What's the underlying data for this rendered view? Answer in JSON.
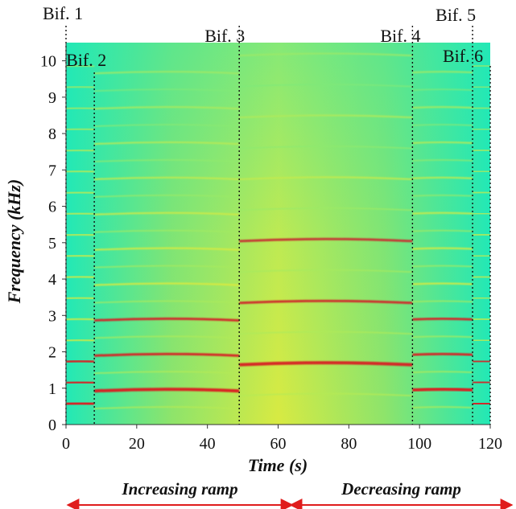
{
  "chart_data": {
    "type": "heatmap",
    "xlabel": "Time (s)",
    "ylabel": "Frequency (kHz)",
    "xlim": [
      0,
      120
    ],
    "ylim": [
      0,
      10.5
    ],
    "xticks": [
      0,
      20,
      40,
      60,
      80,
      100,
      120
    ],
    "yticks": [
      0,
      1,
      2,
      3,
      4,
      5,
      6,
      7,
      8,
      9,
      10
    ],
    "colors": {
      "background": "#22e8b6",
      "low": "#5ce29a",
      "mid": "#b9ea52",
      "high": "#f4ea2e",
      "peak": "#e0141a",
      "arrow": "#e01c1c"
    },
    "bifurcations": [
      {
        "label": "Bif. 1",
        "time": 0
      },
      {
        "label": "Bif. 2",
        "time": 8
      },
      {
        "label": "Bif. 3",
        "time": 49
      },
      {
        "label": "Bif. 4",
        "time": 98
      },
      {
        "label": "Bif. 5",
        "time": 115
      },
      {
        "label": "Bif. 6",
        "time": 120
      }
    ],
    "segments": [
      {
        "t0": 0,
        "t1": 8,
        "f0": 0.58,
        "harmonics": 17
      },
      {
        "t0": 8,
        "t1": 49,
        "f0": 0.97,
        "harmonics": 10,
        "subharmonics": true
      },
      {
        "t0": 49,
        "t1": 98,
        "f0": 1.7,
        "harmonics": 6,
        "subharmonics": true
      },
      {
        "t0": 98,
        "t1": 115,
        "f0": 0.97,
        "harmonics": 10,
        "subharmonics": true
      },
      {
        "t0": 115,
        "t1": 120,
        "f0": 0.58,
        "harmonics": 17
      }
    ],
    "ramps": [
      {
        "label": "Increasing ramp",
        "t0": 0,
        "t1": 64
      },
      {
        "label": "Decreasing ramp",
        "t0": 64,
        "t1": 129
      }
    ]
  }
}
